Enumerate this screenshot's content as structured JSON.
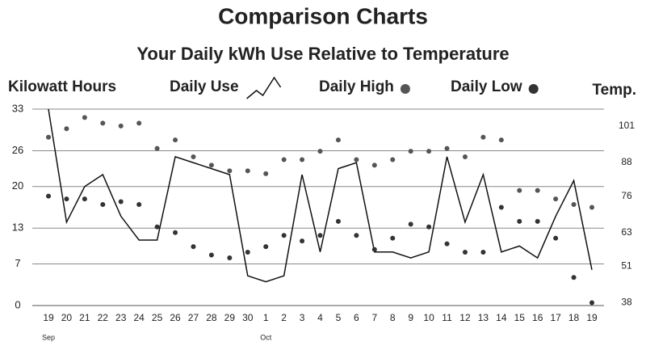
{
  "chart_data": {
    "type": "line",
    "title": "Comparison Charts",
    "subtitle": "Your Daily kWh Use Relative to Temperature",
    "y_label": "Kilowatt Hours",
    "y2_label": "Temp.",
    "categories": [
      "19",
      "20",
      "21",
      "22",
      "23",
      "24",
      "25",
      "26",
      "27",
      "28",
      "29",
      "30",
      "1",
      "2",
      "3",
      "4",
      "5",
      "6",
      "7",
      "8",
      "9",
      "10",
      "11",
      "12",
      "13",
      "14",
      "15",
      "16",
      "17",
      "18",
      "19"
    ],
    "month_labels": [
      "Sep",
      null,
      null,
      null,
      null,
      null,
      null,
      null,
      null,
      null,
      null,
      null,
      "Oct",
      null,
      null,
      null,
      null,
      null,
      null,
      null,
      null,
      null,
      null,
      null,
      null,
      null,
      null,
      null,
      null,
      null,
      null
    ],
    "ylim": [
      0,
      33
    ],
    "yticks": [
      0,
      7,
      13,
      20,
      26,
      33
    ],
    "y2lim": [
      37,
      107
    ],
    "y2ticks": [
      38,
      51,
      63,
      76,
      88,
      101
    ],
    "grid": true,
    "series": [
      {
        "name": "Daily Use",
        "kind": "line",
        "color": "#111111",
        "values": [
          33,
          14,
          20,
          22,
          15,
          11,
          11,
          25,
          24,
          23,
          22,
          5,
          4,
          5,
          22,
          9,
          23,
          24,
          9,
          9,
          8,
          9,
          25,
          14,
          22,
          9,
          10,
          8,
          15,
          21,
          6
        ]
      },
      {
        "name": "Daily High",
        "kind": "dot",
        "axis": "y2",
        "color": "#555555",
        "values": [
          97,
          100,
          104,
          102,
          101,
          102,
          93,
          96,
          90,
          87,
          85,
          85,
          84,
          89,
          89,
          92,
          96,
          89,
          87,
          89,
          92,
          92,
          93,
          90,
          97,
          96,
          78,
          78,
          75,
          73,
          72
        ]
      },
      {
        "name": "Daily Low",
        "kind": "dot",
        "axis": "y2",
        "color": "#333333",
        "values": [
          76,
          75,
          75,
          73,
          74,
          73,
          65,
          63,
          58,
          55,
          54,
          56,
          58,
          62,
          60,
          62,
          67,
          62,
          57,
          61,
          66,
          65,
          59,
          56,
          56,
          72,
          67,
          67,
          61,
          47,
          38
        ]
      }
    ]
  }
}
